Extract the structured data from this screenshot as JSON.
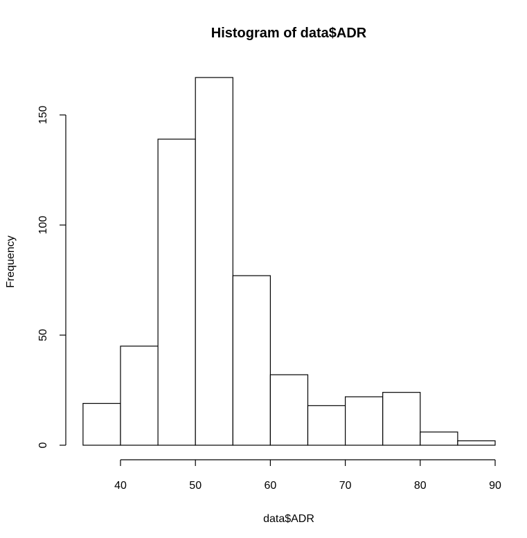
{
  "chart_data": {
    "type": "bar",
    "title": "Histogram of data$ADR",
    "xlabel": "data$ADR",
    "ylabel": "Frequency",
    "bins": [
      {
        "start": 35,
        "end": 40,
        "count": 19
      },
      {
        "start": 40,
        "end": 45,
        "count": 45
      },
      {
        "start": 45,
        "end": 50,
        "count": 139
      },
      {
        "start": 50,
        "end": 55,
        "count": 167
      },
      {
        "start": 55,
        "end": 60,
        "count": 77
      },
      {
        "start": 60,
        "end": 65,
        "count": 32
      },
      {
        "start": 65,
        "end": 70,
        "count": 18
      },
      {
        "start": 70,
        "end": 75,
        "count": 22
      },
      {
        "start": 75,
        "end": 80,
        "count": 24
      },
      {
        "start": 80,
        "end": 85,
        "count": 6
      },
      {
        "start": 85,
        "end": 90,
        "count": 2
      }
    ],
    "x_ticks": [
      "40",
      "50",
      "60",
      "70",
      "80",
      "90"
    ],
    "y_ticks": [
      "0",
      "50",
      "100",
      "150"
    ],
    "xlim": [
      35,
      90
    ],
    "ylim": [
      0,
      167
    ],
    "grid": false,
    "colors": {
      "fill": "#ffffff",
      "stroke": "#000000"
    }
  }
}
